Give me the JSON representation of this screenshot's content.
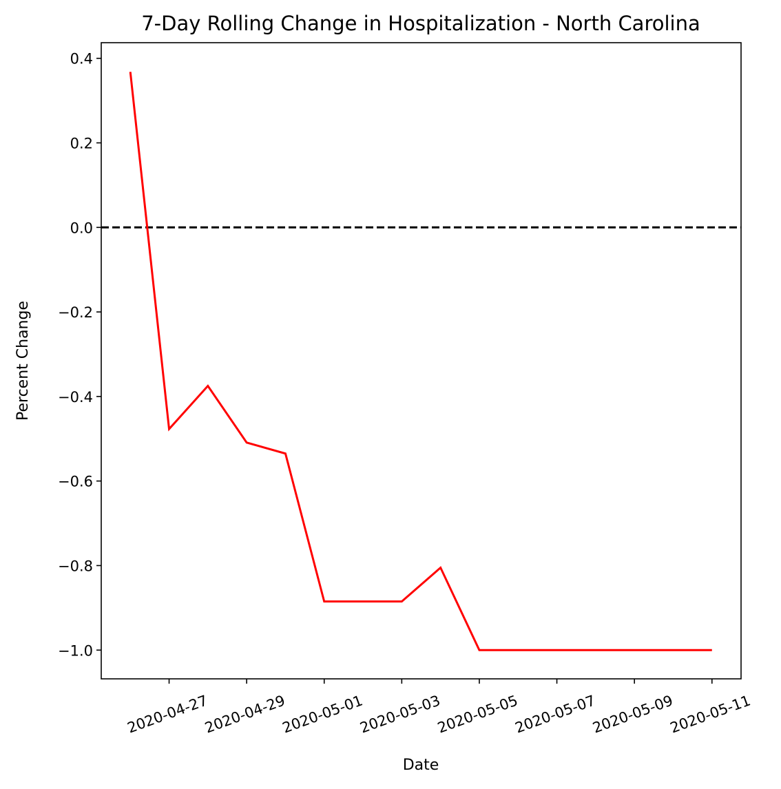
{
  "chart_data": {
    "type": "line",
    "title": "7-Day Rolling Change in Hospitalization - North Carolina",
    "xlabel": "Date",
    "ylabel": "Percent Change",
    "x": [
      "2020-04-26",
      "2020-04-27",
      "2020-04-28",
      "2020-04-29",
      "2020-04-30",
      "2020-05-01",
      "2020-05-02",
      "2020-05-03",
      "2020-05-04",
      "2020-05-05",
      "2020-05-06",
      "2020-05-07",
      "2020-05-08",
      "2020-05-09",
      "2020-05-10",
      "2020-05-11"
    ],
    "series": [
      {
        "color": "#ff0000",
        "values": [
          0.368,
          -0.477,
          -0.375,
          -0.509,
          -0.535,
          -0.885,
          -0.885,
          -0.885,
          -0.805,
          -1.0,
          -1.0,
          -1.0,
          -1.0,
          -1.0,
          -1.0,
          -1.0
        ]
      }
    ],
    "reference_line": {
      "y": 0.0,
      "style": "dashed",
      "color": "#000000"
    },
    "xlim": [
      "2020-04-25.25",
      "2020-05-11.75"
    ],
    "ylim": [
      -1.068,
      0.437
    ],
    "xticks": [
      "2020-04-27",
      "2020-04-29",
      "2020-05-01",
      "2020-05-03",
      "2020-05-05",
      "2020-05-07",
      "2020-05-09",
      "2020-05-11"
    ],
    "yticks": [
      0.4,
      0.2,
      0.0,
      -0.2,
      -0.4,
      -0.6,
      -0.8,
      -1.0
    ],
    "ytick_labels": [
      "0.4",
      "0.2",
      "0.0",
      "−0.2",
      "−0.4",
      "−0.6",
      "−0.8",
      "−1.0"
    ],
    "grid": false,
    "legend": "none"
  }
}
